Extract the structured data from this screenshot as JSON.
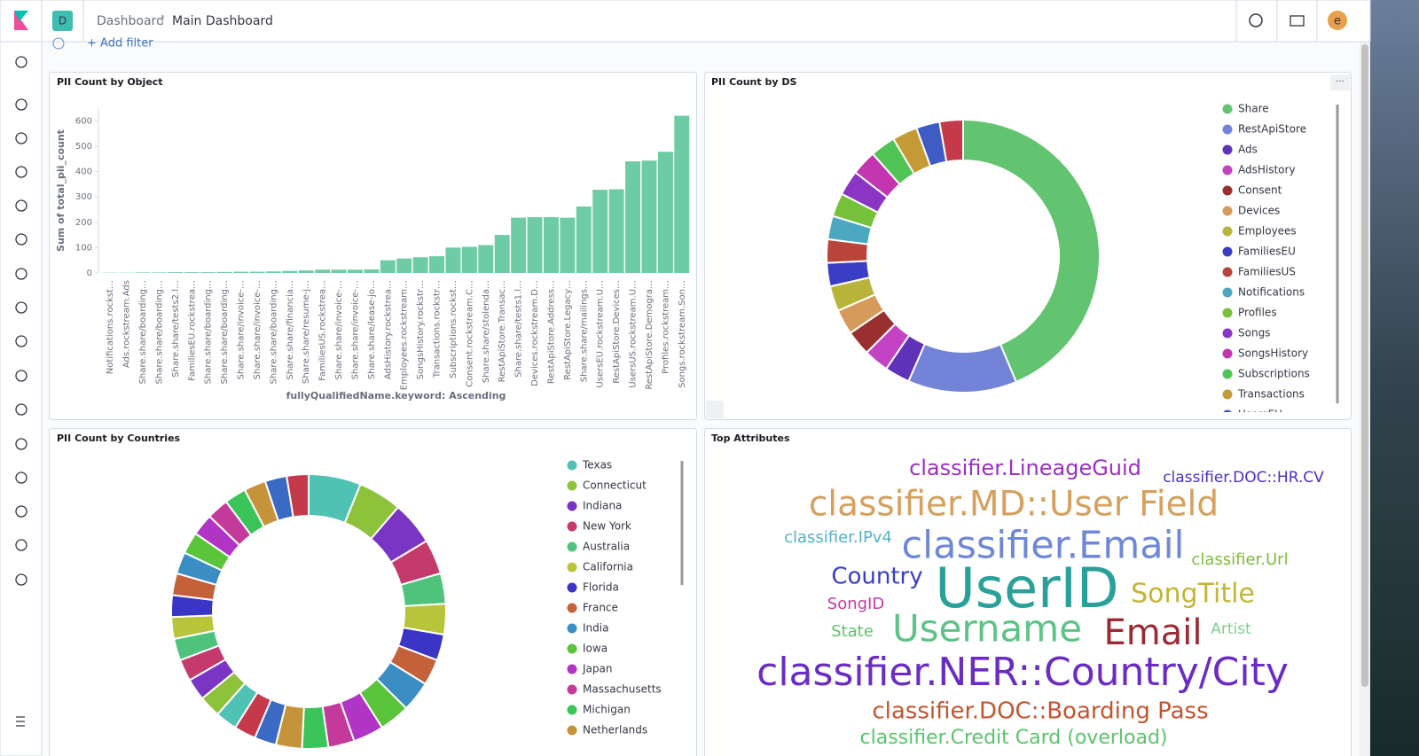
{
  "header": {
    "logo_badge": "D",
    "breadcrumbs": [
      "Dashboard",
      "Main Dashboard"
    ],
    "user_avatar": "e",
    "add_filter": "+ Add filter"
  },
  "chart_data": [
    {
      "type": "bar",
      "title": "PII Count by Object",
      "y_label": "Sum of total_pii_count",
      "x_label": "fullyQualifiedName.keyword: Ascending",
      "categories": [
        "Notifications.rockst…",
        "Ads.rockstream.Ads",
        "Share.share/boarding…",
        "Share.share/boarding…",
        "Share.share/tests2.l…",
        "FamiliesEU.rockstrea…",
        "Share.share/boarding…",
        "Share.share/boarding…",
        "Share.share/invoice-…",
        "Share.share/invoice-…",
        "Share.share/boarding…",
        "Share.share/financia…",
        "Share.share/resume-j…",
        "FamiliesUS.rockstrea…",
        "Share.share/invoice-…",
        "Share.share/invoice-…",
        "Share.share/lease-jo…",
        "AdsHistory.rockstrea…",
        "Employees.rockstream…",
        "SongsHistory.rockstr…",
        "Transactions.rockstr…",
        "Subscriptions.rockst…",
        "Consent.rockstream.C…",
        "Share.share/stolenda…",
        "RestApiStore.Transac…",
        "Share.share/tests1.l…",
        "Devices.rockstream.D…",
        "RestApiStore.Address…",
        "RestApiStore.Legacy…",
        "Share.share/mailings…",
        "UsersEU.rockstream.U…",
        "RestApiStore.Devices…",
        "UsersUS.rockstream.U…",
        "RestApiStore.Demogra…",
        "Profiles.rockstream…",
        "Songs.rockstream.Son…"
      ],
      "values": [
        1,
        1,
        2,
        2,
        3,
        3,
        3,
        4,
        5,
        5,
        6,
        8,
        10,
        13,
        13,
        13,
        14,
        50,
        57,
        62,
        66,
        100,
        103,
        110,
        150,
        218,
        220,
        220,
        218,
        262,
        328,
        330,
        440,
        443,
        478,
        620
      ],
      "color": "#6dcca3",
      "ylim": [
        0,
        650
      ],
      "yticks": [
        0,
        100,
        200,
        300,
        400,
        500,
        600
      ],
      "grid": false
    },
    {
      "type": "pie",
      "title": "PII Count by DS",
      "donut": true,
      "legend": "right",
      "categories": [
        "Share",
        "RestApiStore",
        "Ads",
        "AdsHistory",
        "Consent",
        "Devices",
        "Employees",
        "FamiliesEU",
        "FamiliesUS",
        "Notifications",
        "Profiles",
        "Songs",
        "SongsHistory",
        "Subscriptions",
        "Transactions",
        "UsersEU",
        null
      ],
      "values": [
        44,
        13,
        3,
        3,
        3,
        3,
        3,
        2.8,
        2.8,
        2.8,
        2.8,
        3,
        3,
        3,
        3,
        2.8,
        2.8
      ],
      "colors": [
        "#62c370",
        "#7384d8",
        "#5e33b8",
        "#c442c4",
        "#9a2f2f",
        "#d69a5a",
        "#b8b43a",
        "#3a3ec4",
        "#b8443a",
        "#4ba8c0",
        "#75c23a",
        "#8a35c4",
        "#c435b0",
        "#50c455",
        "#c39a35",
        "#3f5bc4",
        "#c43a4a"
      ]
    },
    {
      "type": "pie",
      "title": "PII Count by Countries",
      "donut": true,
      "legend": "right",
      "categories": [
        "Texas",
        "Connecticut",
        "Indiana",
        "New York",
        "Australia",
        "California",
        "Florida",
        "France",
        "India",
        "Iowa",
        "Japan",
        "Massachusetts",
        "Michigan",
        "Netherlands",
        null,
        null,
        null,
        null,
        null,
        null,
        null,
        null,
        null,
        null,
        null,
        null,
        null,
        null,
        null,
        null,
        null,
        null
      ],
      "values": [
        6,
        5,
        5,
        4,
        3.5,
        3.5,
        3,
        3,
        3.5,
        3.5,
        3.5,
        3,
        3,
        3,
        2.5,
        2.5,
        2.5,
        2.5,
        2.5,
        2.5,
        2.5,
        2.5,
        2.5,
        2.5,
        2.5,
        2.5,
        2.5,
        2.5,
        2.5,
        2.5,
        2.5,
        2.5
      ],
      "colors": [
        "#4fc2b4",
        "#8ec23a",
        "#7b35c4",
        "#c43a6c",
        "#4fc27c",
        "#b8c43a",
        "#3a35c4",
        "#c4603a",
        "#3a8ec4",
        "#5ac43a",
        "#b035c4",
        "#c43a9a",
        "#3ac45a",
        "#c4933a",
        "#3a6ac4",
        "#c43a4a",
        "#4fc2b4",
        "#8ec23a",
        "#7b35c4",
        "#c43a6c",
        "#4fc27c",
        "#b8c43a",
        "#3a35c4",
        "#c4603a",
        "#3a8ec4",
        "#5ac43a",
        "#b035c4",
        "#c43a9a",
        "#3ac45a",
        "#c4933a",
        "#3a6ac4",
        "#c43a4a"
      ]
    }
  ],
  "word_cloud": {
    "title": "Top Attributes",
    "words": [
      {
        "text": "classifier.LineageGuid",
        "color": "#9b2fc4"
      },
      {
        "text": "classifier.DOC::HR.CV",
        "color": "#4b2fc9"
      },
      {
        "text": "classifier.MD::User Field",
        "color": "#d6a05e"
      },
      {
        "text": "classifier.IPv4",
        "color": "#54b3c4"
      },
      {
        "text": "classifier.Email",
        "color": "#6f87d8"
      },
      {
        "text": "classifier.Url",
        "color": "#7dbd3c"
      },
      {
        "text": "Country",
        "color": "#3a3ec4"
      },
      {
        "text": "UserID",
        "color": "#2aa09a"
      },
      {
        "text": "SongTitle",
        "color": "#c3b536"
      },
      {
        "text": "SongID",
        "color": "#c43aa8"
      },
      {
        "text": "State",
        "color": "#5bc46d"
      },
      {
        "text": "Username",
        "color": "#5dc487"
      },
      {
        "text": "Email",
        "color": "#9b2a34"
      },
      {
        "text": "Artist",
        "color": "#7dd18a"
      },
      {
        "text": "classifier.NER::Country/City",
        "color": "#6a2cc4"
      },
      {
        "text": "classifier.DOC::Boarding Pass",
        "color": "#c25530"
      },
      {
        "text": "classifier.Credit Card (overload)",
        "color": "#5bc46d"
      }
    ]
  }
}
